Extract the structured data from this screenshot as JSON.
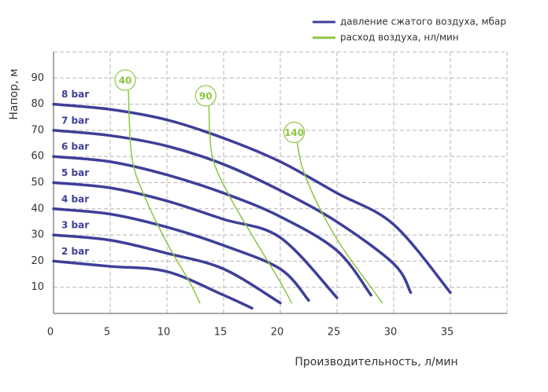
{
  "chart_data": {
    "type": "line",
    "xlabel": "Производительность, л/мин",
    "ylabel": "Напор, м",
    "xlim": [
      0,
      40
    ],
    "xticks": [
      0,
      5,
      10,
      15,
      20,
      25,
      30,
      35
    ],
    "ylim": [
      0,
      100
    ],
    "yticks": [
      10,
      20,
      30,
      40,
      50,
      60,
      70,
      80,
      90
    ],
    "grid": true,
    "legend_position": "upper right",
    "legend": [
      {
        "text": "давление сжатого воздуха, мбар",
        "color": "#3e3f98"
      },
      {
        "text": "расход воздуха, нл/мин",
        "color": "#8cc63e"
      }
    ],
    "series": [
      {
        "name": "8 bar",
        "color": "#3e3f98",
        "x": [
          0,
          5,
          10,
          15,
          20,
          25,
          30,
          35
        ],
        "values": [
          80,
          78,
          74,
          67,
          58,
          46,
          34,
          8
        ]
      },
      {
        "name": "7 bar",
        "color": "#3e3f98",
        "x": [
          0,
          5,
          10,
          15,
          20,
          25,
          30,
          31.5
        ],
        "values": [
          70,
          68,
          64,
          57,
          47,
          35,
          19,
          8
        ]
      },
      {
        "name": "6 bar",
        "color": "#3e3f98",
        "x": [
          0,
          5,
          10,
          15,
          20,
          25,
          28
        ],
        "values": [
          60,
          58,
          53,
          46,
          37,
          24,
          7
        ]
      },
      {
        "name": "5 bar",
        "color": "#3e3f98",
        "x": [
          0,
          5,
          10,
          15,
          20,
          25
        ],
        "values": [
          50,
          48,
          43,
          36,
          29,
          6
        ]
      },
      {
        "name": "4 bar",
        "color": "#3e3f98",
        "x": [
          0,
          5,
          10,
          15,
          20,
          22.5
        ],
        "values": [
          40,
          38,
          33,
          26,
          17,
          5
        ]
      },
      {
        "name": "3 bar",
        "color": "#3e3f98",
        "x": [
          0,
          5,
          10,
          15,
          20
        ],
        "values": [
          30,
          28,
          23,
          17,
          4
        ]
      },
      {
        "name": "2 bar",
        "color": "#3e3f98",
        "x": [
          0,
          5,
          10,
          15,
          17.5
        ],
        "values": [
          20,
          18,
          16,
          7,
          2
        ]
      },
      {
        "name": "40",
        "color": "#8cc63e",
        "x": [
          6.6,
          6.9,
          8,
          10,
          12,
          12.9
        ],
        "values": [
          85,
          60,
          45,
          27,
          12,
          4
        ]
      },
      {
        "name": "90",
        "color": "#8cc63e",
        "x": [
          13.7,
          14,
          15.5,
          17.5,
          20,
          21
        ],
        "values": [
          79,
          60,
          45,
          30,
          12,
          4
        ]
      },
      {
        "name": "140",
        "color": "#8cc63e",
        "x": [
          21.5,
          22,
          23.5,
          25.5,
          28,
          29
        ],
        "values": [
          65,
          55,
          40,
          25,
          10,
          4
        ]
      }
    ]
  }
}
